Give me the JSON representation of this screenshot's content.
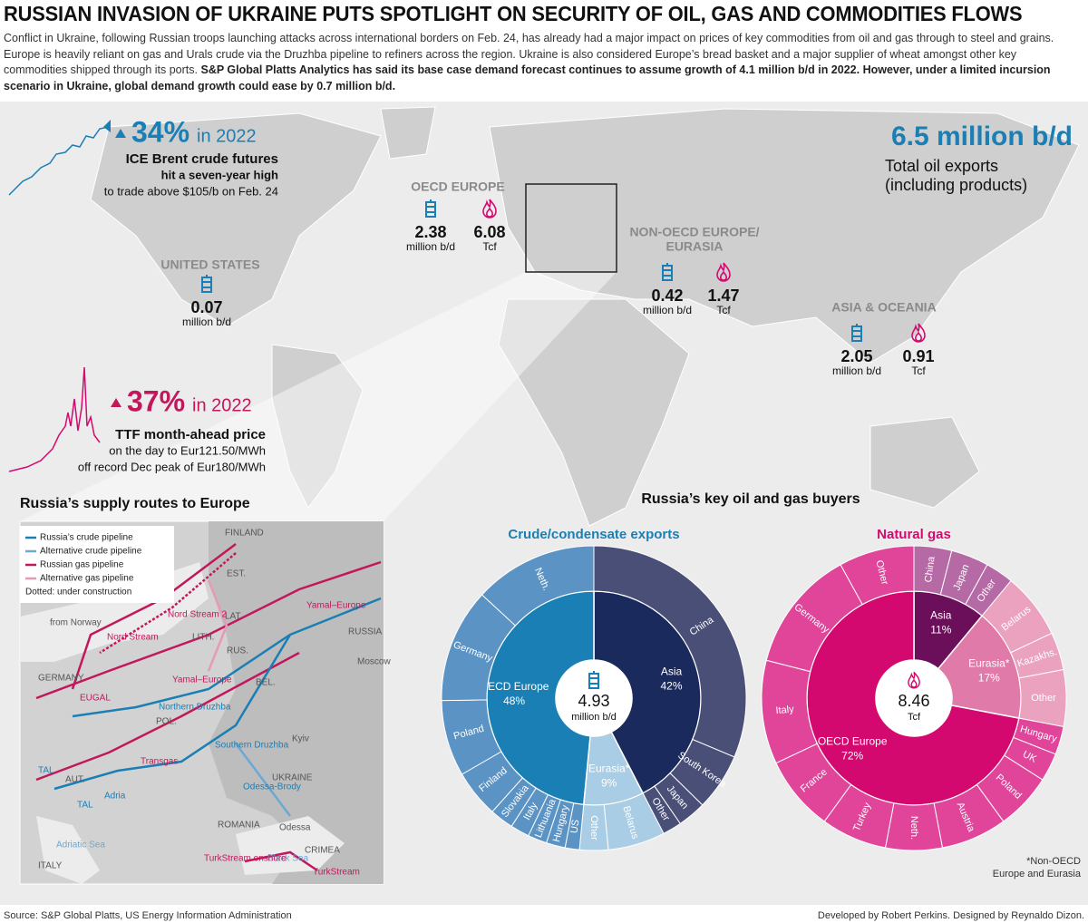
{
  "header": {
    "title": "RUSSIAN INVASION OF UKRAINE PUTS SPOTLIGHT ON SECURITY OF OIL, GAS AND COMMODITIES FLOWS",
    "body": "Conflict in Ukraine, following Russian troops launching attacks across international borders on Feb. 24, has already had a major impact on prices of key commodities from oil and gas through to steel and grains. Europe is heavily reliant on gas and Urals crude via the Druzhba pipeline to refiners across the region. Ukraine is also considered Europe’s bread basket and a major supplier of wheat amongst other key commodities shipped through its ports.",
    "body_bold": "S&P Global Platts Analytics has said its base case demand forecast continues to assume growth of 4.1 million b/d in 2022. However, under a limited incursion scenario in Ukraine, global demand growth could ease by 0.7 million b/d."
  },
  "callouts": [
    {
      "change": "34%",
      "period": "in 2022",
      "lines": [
        "ICE Brent crude futures",
        "hit a seven-year high",
        "to trade above $105/b on Feb. 24"
      ]
    },
    {
      "change": "37%",
      "period": "in 2022",
      "lines": [
        "TTF month-ahead price",
        "on the day to Eur121.50/MWh",
        "off record Dec peak of Eur180/MWh"
      ]
    }
  ],
  "exports": {
    "value": "6.5 million b/d",
    "lines": [
      "Total oil exports",
      "(including products)"
    ]
  },
  "regions": [
    {
      "name": [
        "OECD EUROPE"
      ],
      "oil": 2.38,
      "oil_unit": "million b/d",
      "gas": 6.08,
      "gas_unit": "Tcf"
    },
    {
      "name": [
        "UNITED STATES"
      ],
      "oil": 0.07,
      "oil_unit": "million b/d"
    },
    {
      "name": [
        "NON-OECD EUROPE/",
        "EURASIA"
      ],
      "oil": 0.42,
      "oil_unit": "million b/d",
      "gas": 1.47,
      "gas_unit": "Tcf"
    },
    {
      "name": [
        "ASIA & OCEANIA"
      ],
      "oil": 2.05,
      "oil_unit": "million b/d",
      "gas": 0.91,
      "gas_unit": "Tcf"
    }
  ],
  "inset": {
    "title": "Russia’s supply routes to Europe",
    "legend": [
      "Russia’s crude pipeline",
      "Alternative crude pipeline",
      "Russian gas pipeline",
      "Alternative gas pipeline",
      "Dotted: under construction"
    ],
    "labels": [
      "FINLAND",
      "EST.",
      "LAT.",
      "LITH.",
      "RUSSIA",
      "Moscow",
      "GERMANY",
      "BEL.",
      "POL.",
      "Kyiv",
      "UKRAINE",
      "AUT.",
      "ROMANIA",
      "Odessa",
      "CRIMEA",
      "ITALY",
      "from Norway",
      "Nord Stream",
      "Nord Stream 2",
      "Yamal–Europe",
      "Yamal–Europe",
      "Northern Druzhba",
      "Southern Druzhba",
      "Transgas",
      "EUGAL",
      "TAL",
      "TAL",
      "Adria",
      "Odessa-Brody",
      "Adriatic Sea",
      "Black Sea",
      "TurkStream onshore",
      "TurkStream",
      "RUS."
    ]
  },
  "buyers_title": "Russia’s key oil and gas buyers",
  "chart_data": [
    {
      "type": "sunburst",
      "title": "Crude/condensate exports",
      "total": 4.93,
      "unit": "million b/d",
      "title_color": "#1a7fb5",
      "groups": [
        {
          "name": "Asia",
          "value": 42,
          "value_label": "42%",
          "color": "#1b2a5c",
          "child_color": "#4a4f77",
          "categories": [
            "China",
            "South Korea",
            "Japan",
            "Other"
          ],
          "values": [
            31,
            6,
            3,
            2
          ]
        },
        {
          "name": "Eurasia*",
          "value": 9,
          "value_label": "9%",
          "color": "#a9cde4",
          "child_color": "#a9cde4",
          "categories": [
            "Belarus",
            "Other"
          ],
          "values": [
            6,
            3
          ]
        },
        {
          "name": "OECD Europe",
          "value": 48,
          "value_label": "48%",
          "color": "#1a7fb5",
          "child_color": "#5b93c4",
          "categories": [
            "US",
            "Hungary",
            "Lithuania",
            "Italy",
            "Slovakia",
            "Finland",
            "Poland",
            "Germany",
            "Neth."
          ],
          "values": [
            1.5,
            2,
            2,
            2,
            2.5,
            5,
            8,
            12,
            13
          ]
        }
      ]
    },
    {
      "type": "sunburst",
      "title": "Natural gas",
      "total": 8.46,
      "unit": "Tcf",
      "title_color": "#d4096f",
      "groups": [
        {
          "name": "Asia",
          "value": 11,
          "value_label": "11%",
          "color": "#6b0f5a",
          "child_color": "#b56aa6",
          "categories": [
            "China",
            "Japan",
            "Other"
          ],
          "values": [
            4,
            4,
            3
          ]
        },
        {
          "name": "Eurasia*",
          "value": 17,
          "value_label": "17%",
          "color": "#e07aa8",
          "child_color": "#eaa2bf",
          "categories": [
            "Belarus",
            "Kazakhs.",
            "Other"
          ],
          "values": [
            7,
            4,
            6
          ]
        },
        {
          "name": "OECD Europe",
          "value": 72,
          "value_label": "72%",
          "color": "#d4096f",
          "child_color": "#e0459a",
          "categories": [
            "Hungary",
            "UK",
            "Poland",
            "Austria",
            "Neth.",
            "Turkey",
            "France",
            "Italy",
            "Germany",
            "Other"
          ],
          "values": [
            3,
            3,
            6,
            7,
            6,
            7,
            8,
            11,
            13,
            8
          ]
        }
      ]
    }
  ],
  "note": [
    "*Non-OECD",
    "Europe and Eurasia"
  ],
  "footer": {
    "source": "Source: S&P Global Platts, US Energy Information Administration",
    "credits": "Developed by Robert Perkins. Designed by Reynaldo Dizon."
  }
}
